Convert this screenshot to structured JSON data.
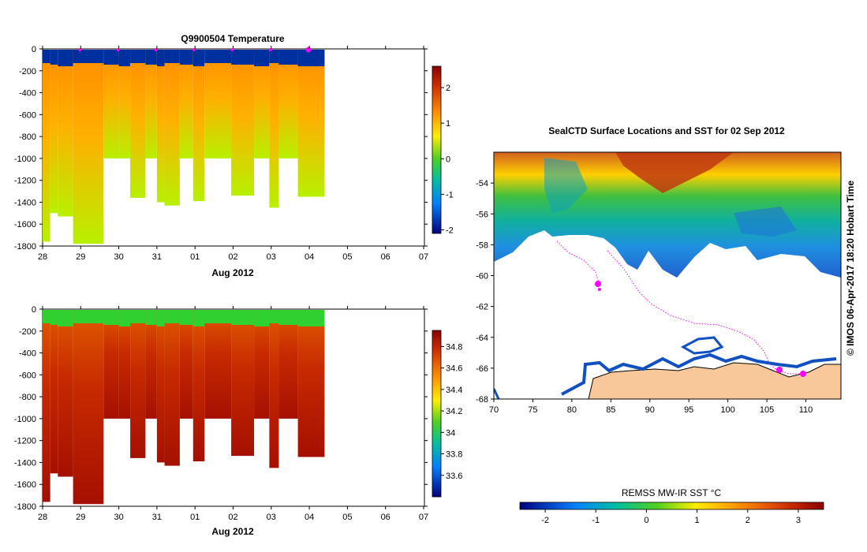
{
  "chart_data": [
    {
      "type": "heatmap",
      "title": "Q9900504  Temperature",
      "xlabel": "Aug 2012",
      "ylabel": "",
      "x_tick_labels": [
        "28",
        "29",
        "30",
        "31",
        "01",
        "02",
        "03",
        "04",
        "05",
        "06",
        "07"
      ],
      "y_tick_labels": [
        "0",
        "-200",
        "-400",
        "-600",
        "-800",
        "-1000",
        "-1200",
        "-1400",
        "-1600",
        "-1800"
      ],
      "ylim": [
        -1800,
        0
      ],
      "colorbar": {
        "ticks": [
          "2",
          "1",
          "0",
          "-1",
          "-2"
        ],
        "range": [
          -2.1,
          2.6
        ]
      },
      "profiles": [
        {
          "day": 0.0,
          "max_depth": -1760
        },
        {
          "day": 0.2,
          "max_depth": -1500
        },
        {
          "day": 0.4,
          "max_depth": -1530
        },
        {
          "day": 0.8,
          "max_depth": -1780
        },
        {
          "day": 1.6,
          "max_depth": -1000
        },
        {
          "day": 2.0,
          "max_depth": -1000
        },
        {
          "day": 2.3,
          "max_depth": -1360
        },
        {
          "day": 2.7,
          "max_depth": -1000
        },
        {
          "day": 3.0,
          "max_depth": -1400
        },
        {
          "day": 3.2,
          "max_depth": -1430
        },
        {
          "day": 3.6,
          "max_depth": -1000
        },
        {
          "day": 3.95,
          "max_depth": -1390
        },
        {
          "day": 4.25,
          "max_depth": -1000
        },
        {
          "day": 4.95,
          "max_depth": -1340
        },
        {
          "day": 5.55,
          "max_depth": -1000
        },
        {
          "day": 5.95,
          "max_depth": -1450
        },
        {
          "day": 6.2,
          "max_depth": -1000
        },
        {
          "day": 6.7,
          "max_depth": -1350
        },
        {
          "day": 7.4,
          "max_depth": 0
        }
      ],
      "surface_markers_days": [
        1.0,
        2.0,
        3.0,
        4.0,
        5.0,
        6.0,
        7.0
      ]
    },
    {
      "type": "heatmap",
      "title": "",
      "xlabel": "Aug 2012",
      "ylabel": "",
      "x_tick_labels": [
        "28",
        "29",
        "30",
        "31",
        "01",
        "02",
        "03",
        "04",
        "05",
        "06",
        "07"
      ],
      "y_tick_labels": [
        "0",
        "-200",
        "-400",
        "-600",
        "-800",
        "-1000",
        "-1200",
        "-1400",
        "-1600",
        "-1800"
      ],
      "ylim": [
        -1800,
        0
      ],
      "colorbar": {
        "ticks": [
          "34.8",
          "34.6",
          "34.4",
          "34.2",
          "34",
          "33.8",
          "33.6"
        ],
        "range": [
          33.4,
          34.95
        ]
      }
    },
    {
      "type": "heatmap",
      "title": "SealCTD Surface Locations and SST for 02 Sep 2012",
      "xlabel": "",
      "ylabel": "",
      "x_tick_labels": [
        "70",
        "75",
        "80",
        "85",
        "90",
        "95",
        "100",
        "105",
        "110"
      ],
      "y_tick_labels": [
        "-54",
        "-56",
        "-58",
        "-60",
        "-62",
        "-64",
        "-66",
        "-68"
      ],
      "xlim": [
        70,
        114.5
      ],
      "ylim": [
        -68,
        -52
      ],
      "colorbar": {
        "label": "REMSS MW-IR SST °C",
        "ticks": [
          "-2",
          "-1",
          "0",
          "1",
          "2",
          "3"
        ],
        "range": [
          -2.5,
          3.5
        ]
      }
    }
  ],
  "credit": "© IMOS 06-Apr-2017 18:20 Hobart Time"
}
